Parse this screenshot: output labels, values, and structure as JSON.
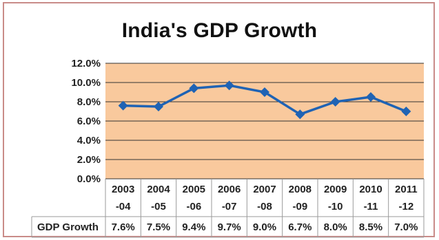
{
  "chart_data": {
    "type": "line",
    "title": "India's GDP Growth",
    "categories": [
      [
        "2003",
        "-04"
      ],
      [
        "2004",
        "-05"
      ],
      [
        "2005",
        "-06"
      ],
      [
        "2006",
        "-07"
      ],
      [
        "2007",
        "-08"
      ],
      [
        "2008",
        "-09"
      ],
      [
        "2009",
        "-10"
      ],
      [
        "2010",
        "-11"
      ],
      [
        "2011",
        "-12"
      ]
    ],
    "series": [
      {
        "name": "GDP Growth",
        "values": [
          7.6,
          7.5,
          9.4,
          9.7,
          9.0,
          6.7,
          8.0,
          8.5,
          7.0
        ],
        "labels": [
          "7.6%",
          "7.5%",
          "9.4%",
          "9.7%",
          "9.0%",
          "6.7%",
          "8.0%",
          "8.5%",
          "7.0%"
        ]
      }
    ],
    "yticks": [
      "0.0%",
      "2.0%",
      "4.0%",
      "6.0%",
      "8.0%",
      "10.0%",
      "12.0%"
    ],
    "ylim": [
      0,
      12
    ],
    "grid": true,
    "data_table": true,
    "colors": {
      "line": "#1f63b4",
      "plot_bg": "#f9c99d",
      "frame": "#c98b88",
      "grid": "#333333"
    }
  }
}
